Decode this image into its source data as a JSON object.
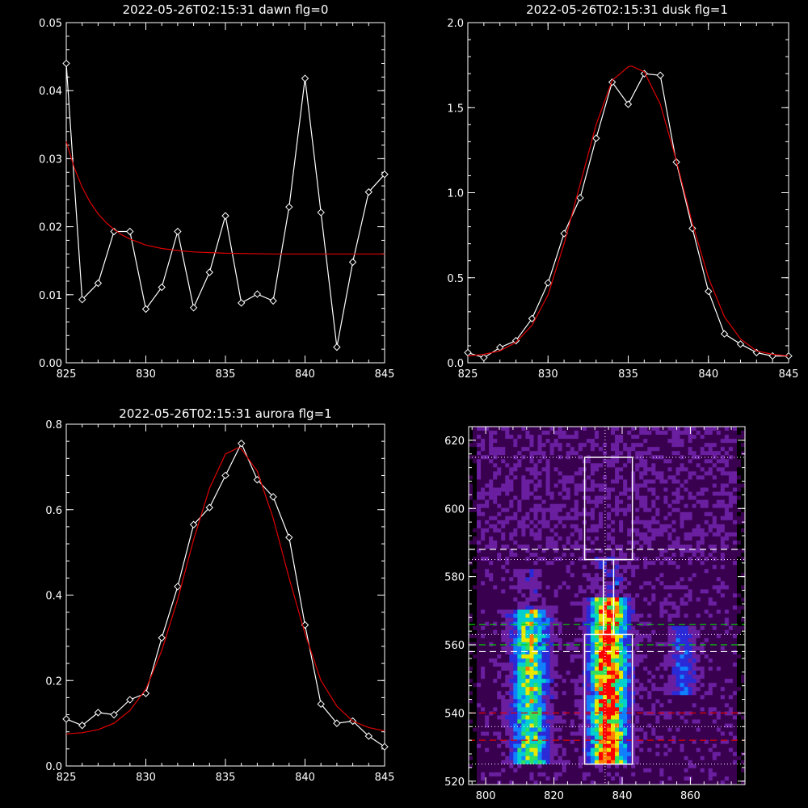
{
  "colors": {
    "background": "#000000",
    "axes": "#ffffff",
    "data_line": "#ffffff",
    "fit_line": "#e00000",
    "green_line": "#00d000",
    "red_dashed": "#e00000",
    "white_dashed": "#ffffff"
  },
  "chart_data": [
    {
      "id": "dawn",
      "type": "line",
      "title": "2022-05-26T02:15:31 dawn flg=0",
      "xlim": [
        825,
        845
      ],
      "ylim": [
        0,
        0.05
      ],
      "x_ticks": [
        825,
        830,
        835,
        840,
        845
      ],
      "x_tick_labels": [
        "825",
        "830",
        "835",
        "840",
        "845"
      ],
      "y_ticks": [
        0,
        0.01,
        0.02,
        0.03,
        0.04,
        0.05
      ],
      "y_tick_labels": [
        "0.00",
        "0.01",
        "0.02",
        "0.03",
        "0.04",
        "0.05"
      ],
      "series": [
        {
          "kind": "data",
          "marker": "diamond",
          "x": [
            825,
            826,
            827,
            828,
            829,
            830,
            831,
            832,
            833,
            834,
            835,
            836,
            837,
            838,
            839,
            840,
            841,
            842,
            843,
            844,
            845
          ],
          "y": [
            0.044,
            0.0093,
            0.0117,
            0.0193,
            0.0193,
            0.0079,
            0.0111,
            0.0193,
            0.0081,
            0.0133,
            0.0216,
            0.0088,
            0.0101,
            0.0091,
            0.0229,
            0.0418,
            0.0221,
            0.0023,
            0.0148,
            0.0251,
            0.0277
          ]
        },
        {
          "kind": "fit",
          "x": [
            825,
            825.5,
            826,
            826.5,
            827,
            827.5,
            828,
            828.5,
            829,
            830,
            831,
            832,
            833,
            835,
            838,
            841,
            845
          ],
          "y": [
            0.0325,
            0.0287,
            0.0258,
            0.0236,
            0.0219,
            0.0206,
            0.0196,
            0.0188,
            0.0182,
            0.0173,
            0.0168,
            0.0165,
            0.0163,
            0.0161,
            0.016,
            0.016,
            0.016
          ]
        }
      ]
    },
    {
      "id": "dusk",
      "type": "line",
      "title": "2022-05-26T02:15:31 dusk flg=1",
      "xlim": [
        825,
        845
      ],
      "ylim": [
        0,
        2.0
      ],
      "x_ticks": [
        825,
        830,
        835,
        840,
        845
      ],
      "x_tick_labels": [
        "825",
        "830",
        "835",
        "840",
        "845"
      ],
      "y_ticks": [
        0,
        0.5,
        1.0,
        1.5,
        2.0
      ],
      "y_tick_labels": [
        "0.0",
        "0.5",
        "1.0",
        "1.5",
        "2.0"
      ],
      "series": [
        {
          "kind": "data",
          "marker": "diamond",
          "x": [
            825,
            826,
            827,
            828,
            829,
            830,
            831,
            832,
            833,
            834,
            835,
            836,
            837,
            838,
            839,
            840,
            841,
            842,
            843,
            844,
            845
          ],
          "y": [
            0.06,
            0.03,
            0.09,
            0.13,
            0.26,
            0.47,
            0.76,
            0.97,
            1.32,
            1.65,
            1.52,
            1.7,
            1.69,
            1.18,
            0.79,
            0.42,
            0.17,
            0.11,
            0.06,
            0.04,
            0.04
          ]
        },
        {
          "kind": "fit",
          "x": [
            825,
            826,
            827,
            828,
            829,
            830,
            831,
            832,
            833,
            834,
            835,
            835.2,
            836,
            837,
            838,
            839,
            840,
            841,
            842,
            843,
            844,
            845
          ],
          "y": [
            0.04,
            0.05,
            0.07,
            0.12,
            0.22,
            0.4,
            0.7,
            1.05,
            1.4,
            1.66,
            1.74,
            1.745,
            1.71,
            1.52,
            1.19,
            0.82,
            0.5,
            0.27,
            0.14,
            0.07,
            0.05,
            0.04
          ]
        }
      ]
    },
    {
      "id": "aurora",
      "type": "line",
      "title": "2022-05-26T02:15:31 aurora flg=1",
      "xlim": [
        825,
        845
      ],
      "ylim": [
        0,
        0.8
      ],
      "x_ticks": [
        825,
        830,
        835,
        840,
        845
      ],
      "x_tick_labels": [
        "825",
        "830",
        "835",
        "840",
        "845"
      ],
      "y_ticks": [
        0,
        0.2,
        0.4,
        0.6,
        0.8
      ],
      "y_tick_labels": [
        "0.0",
        "0.2",
        "0.4",
        "0.6",
        "0.8"
      ],
      "series": [
        {
          "kind": "data",
          "marker": "diamond",
          "x": [
            825,
            826,
            827,
            828,
            829,
            830,
            831,
            832,
            833,
            834,
            835,
            836,
            837,
            838,
            839,
            840,
            841,
            842,
            843,
            844,
            845
          ],
          "y": [
            0.11,
            0.095,
            0.125,
            0.12,
            0.155,
            0.17,
            0.3,
            0.42,
            0.565,
            0.605,
            0.68,
            0.755,
            0.67,
            0.63,
            0.535,
            0.33,
            0.145,
            0.1,
            0.105,
            0.07,
            0.045
          ]
        },
        {
          "kind": "fit",
          "x": [
            825,
            826,
            827,
            828,
            829,
            830,
            831,
            832,
            833,
            834,
            835,
            835.8,
            836,
            837,
            838,
            839,
            840,
            841,
            842,
            843,
            844,
            845
          ],
          "y": [
            0.075,
            0.078,
            0.085,
            0.1,
            0.13,
            0.18,
            0.27,
            0.39,
            0.53,
            0.65,
            0.73,
            0.745,
            0.742,
            0.69,
            0.58,
            0.44,
            0.31,
            0.2,
            0.14,
            0.105,
            0.09,
            0.082
          ]
        }
      ]
    },
    {
      "id": "image",
      "type": "heatmap",
      "xlim": [
        795,
        876
      ],
      "ylim": [
        519,
        624
      ],
      "x_ticks": [
        800,
        820,
        840,
        860
      ],
      "x_tick_labels": [
        "800",
        "820",
        "840",
        "860"
      ],
      "y_ticks": [
        520,
        540,
        560,
        580,
        600,
        620
      ],
      "y_tick_labels": [
        "520",
        "540",
        "560",
        "580",
        "600",
        "620"
      ],
      "colormap": [
        "#000000",
        "#3a0050",
        "#6a1fa0",
        "#2a2ad8",
        "#1080ff",
        "#00d0d0",
        "#30e060",
        "#e8e800",
        "#ff8000",
        "#ff0000"
      ],
      "bright_bands": [
        {
          "x_center": 813,
          "x_width": 5,
          "y_range": [
            525,
            570
          ],
          "peak": 0.62
        },
        {
          "x_center": 836,
          "x_width": 5,
          "y_range": [
            525,
            574
          ],
          "peak": 0.95
        },
        {
          "x_center": 858,
          "x_width": 4,
          "y_range": [
            545,
            565
          ],
          "peak": 0.25
        }
      ],
      "upper_box": {
        "x": [
          829,
          843
        ],
        "y": [
          585,
          615
        ]
      },
      "lower_box": {
        "x": [
          829,
          843
        ],
        "y": [
          525,
          563
        ]
      },
      "connector_x": [
        834.5,
        837.5
      ],
      "vertical_dotted_x": 835,
      "horizontal_dotted_y": [
        615,
        585,
        563,
        536,
        525
      ],
      "white_dashed_y": [
        588,
        558
      ],
      "green_dashed_y": [
        566,
        560
      ],
      "red_dashed_y": [
        540,
        532
      ]
    }
  ]
}
